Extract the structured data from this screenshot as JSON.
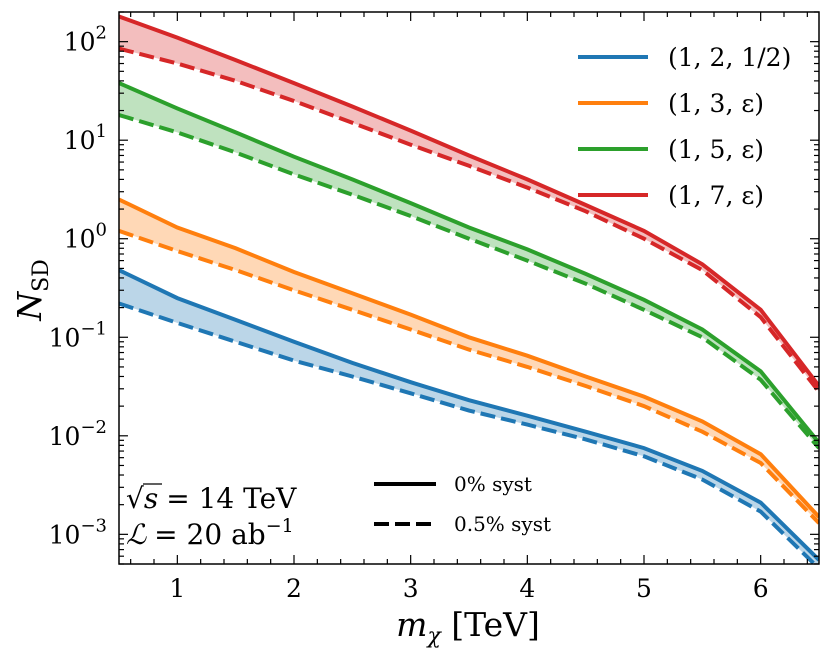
{
  "chart_data": {
    "type": "line",
    "title": "",
    "xlabel": "m_χ [TeV]",
    "ylabel": "N_SD",
    "xlim": [
      0.5,
      6.5
    ],
    "ylim": [
      0.0005,
      200
    ],
    "yscale": "log",
    "grid": false,
    "x_ticks": [
      1,
      2,
      3,
      4,
      5,
      6
    ],
    "x_tick_labels": [
      "1",
      "2",
      "3",
      "4",
      "5",
      "6"
    ],
    "y_ticks": [
      0.001,
      0.01,
      0.1,
      1,
      10,
      100
    ],
    "y_tick_labels": [
      {
        "base": "10",
        "exp": "−3"
      },
      {
        "base": "10",
        "exp": "−2"
      },
      {
        "base": "10",
        "exp": "−1"
      },
      {
        "base": "10",
        "exp": "0"
      },
      {
        "base": "10",
        "exp": "1"
      },
      {
        "base": "10",
        "exp": "2"
      }
    ],
    "x": [
      0.5,
      1,
      1.5,
      2,
      2.5,
      3,
      3.5,
      4,
      4.5,
      5,
      5.5,
      6,
      6.5
    ],
    "series": [
      {
        "name": "(1, 2, 1/2)",
        "color": "#1f77b4",
        "syst_0": [
          0.48,
          0.25,
          0.15,
          0.09,
          0.055,
          0.035,
          0.023,
          0.016,
          0.011,
          0.0075,
          0.0044,
          0.0021,
          0.00055
        ],
        "syst_0p5": [
          0.22,
          0.14,
          0.09,
          0.058,
          0.04,
          0.027,
          0.018,
          0.013,
          0.0092,
          0.0062,
          0.0036,
          0.0017,
          0.00045
        ]
      },
      {
        "name": "(1, 3, ε)",
        "color": "#ff7f0e",
        "syst_0": [
          2.5,
          1.3,
          0.8,
          0.46,
          0.28,
          0.17,
          0.1,
          0.065,
          0.04,
          0.025,
          0.014,
          0.0065,
          0.0015
        ],
        "syst_0p5": [
          1.2,
          0.75,
          0.48,
          0.3,
          0.19,
          0.12,
          0.075,
          0.05,
          0.032,
          0.02,
          0.011,
          0.0053,
          0.0013
        ]
      },
      {
        "name": "(1, 5, ε)",
        "color": "#2ca02c",
        "syst_0": [
          38,
          21,
          12,
          6.8,
          4.0,
          2.3,
          1.3,
          0.78,
          0.44,
          0.24,
          0.12,
          0.045,
          0.0085
        ],
        "syst_0p5": [
          18,
          12,
          7.5,
          4.5,
          2.8,
          1.7,
          1.0,
          0.6,
          0.35,
          0.19,
          0.1,
          0.037,
          0.0075
        ]
      },
      {
        "name": "(1, 7, ε)",
        "color": "#d62728",
        "syst_0": [
          180,
          110,
          65,
          38,
          22,
          12.5,
          7.0,
          4.0,
          2.2,
          1.2,
          0.55,
          0.19,
          0.032
        ],
        "syst_0p5": [
          85,
          60,
          40,
          25,
          15,
          9.0,
          5.5,
          3.3,
          1.9,
          1.0,
          0.48,
          0.16,
          0.028
        ]
      }
    ],
    "line_styles": [
      {
        "style": "solid",
        "label": "0% syst"
      },
      {
        "style": "dashed",
        "label": "0.5% syst"
      }
    ],
    "annotations": {
      "sqrt_s": {
        "symbol": "√s",
        "eq": "= 14 TeV"
      },
      "lumi": {
        "symbol": "ℒ",
        "eq": "= 20 ab",
        "exp": "−1"
      }
    },
    "legend_position": "top-right"
  }
}
